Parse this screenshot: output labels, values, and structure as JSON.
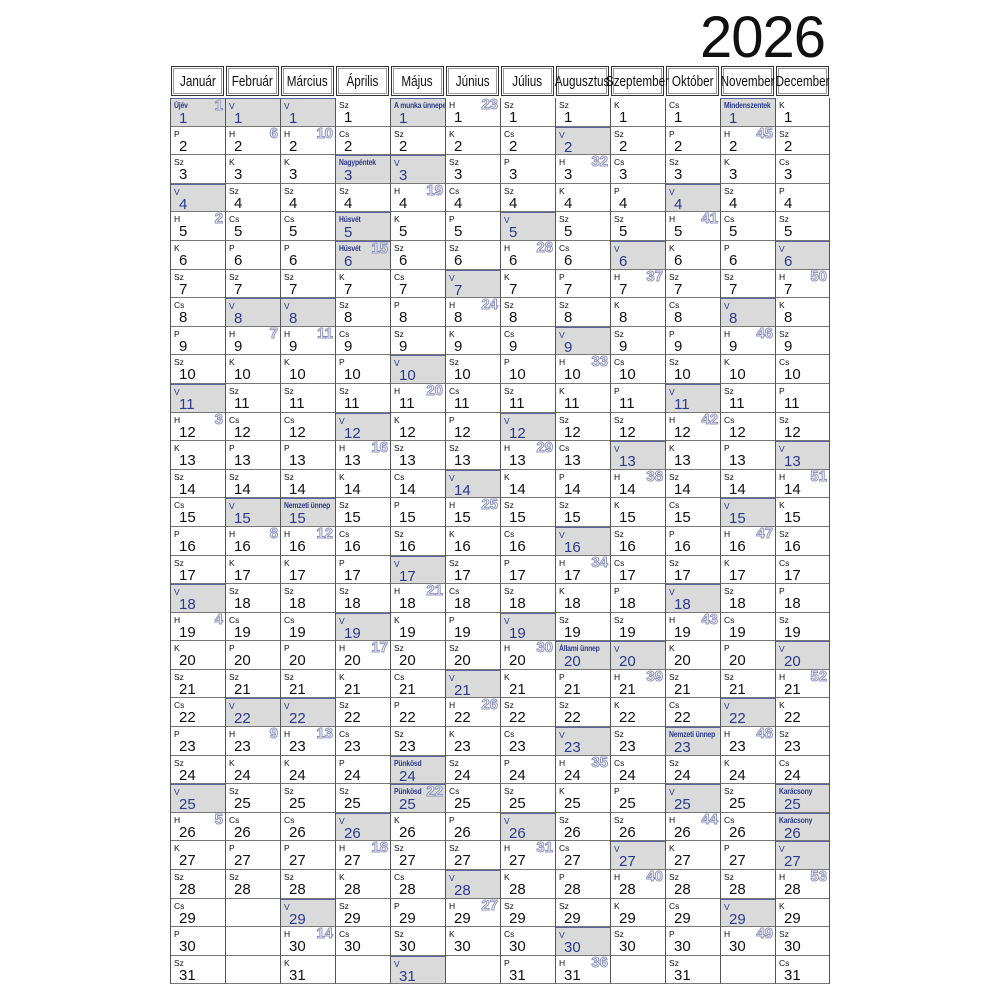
{
  "title": "2026",
  "colors": {
    "shaded_bg": "#dadada",
    "holiday_text": "#2b3a8c",
    "week_outline": "#8d93bd"
  },
  "day_numbers": [
    1,
    2,
    3,
    4,
    5,
    6,
    7,
    8,
    9,
    10,
    11,
    12,
    13,
    14,
    15,
    16,
    17,
    18,
    19,
    20,
    21,
    22,
    23,
    24,
    25,
    26,
    27,
    28,
    29,
    30,
    31
  ],
  "months": [
    {
      "name": "Január",
      "labels": [
        "Újév",
        "P",
        "Sz",
        "V",
        "H",
        "K",
        "Sz",
        "Cs",
        "P",
        "Sz",
        "V",
        "H",
        "K",
        "Sz",
        "Cs",
        "P",
        "Sz",
        "V",
        "H",
        "K",
        "Sz",
        "Cs",
        "P",
        "Sz",
        "V",
        "H",
        "K",
        "Sz",
        "Cs",
        "P",
        "Sz"
      ],
      "weeks": {
        "1": "1",
        "5": "2",
        "12": "3",
        "19": "4",
        "26": "5"
      },
      "shaded": [
        1,
        4,
        11,
        18,
        25
      ]
    },
    {
      "name": "Február",
      "labels": [
        "V",
        "H",
        "K",
        "Sz",
        "Cs",
        "P",
        "Sz",
        "V",
        "H",
        "K",
        "Sz",
        "Cs",
        "P",
        "Sz",
        "V",
        "H",
        "K",
        "Sz",
        "Cs",
        "P",
        "Sz",
        "V",
        "H",
        "K",
        "Sz",
        "Cs",
        "P",
        "Sz"
      ],
      "weeks": {
        "2": "6",
        "9": "7",
        "16": "8",
        "23": "9"
      },
      "shaded": [
        1,
        8,
        15,
        22
      ]
    },
    {
      "name": "Március",
      "labels": [
        "V",
        "H",
        "K",
        "Sz",
        "Cs",
        "P",
        "Sz",
        "V",
        "H",
        "K",
        "Sz",
        "Cs",
        "P",
        "Sz",
        "Nemzeti ünnep",
        "H",
        "K",
        "Sz",
        "Cs",
        "P",
        "Sz",
        "V",
        "H",
        "K",
        "Sz",
        "Cs",
        "P",
        "Sz",
        "V",
        "H",
        "K"
      ],
      "weeks": {
        "2": "10",
        "9": "11",
        "16": "12",
        "23": "13",
        "30": "14"
      },
      "shaded": [
        1,
        8,
        15,
        22,
        29
      ]
    },
    {
      "name": "Április",
      "labels": [
        "Sz",
        "Cs",
        "Nagypéntek",
        "Sz",
        "Húsvét",
        "Húsvét",
        "K",
        "Sz",
        "Cs",
        "P",
        "Sz",
        "V",
        "H",
        "K",
        "Sz",
        "Cs",
        "P",
        "Sz",
        "V",
        "H",
        "K",
        "Sz",
        "Cs",
        "P",
        "Sz",
        "V",
        "H",
        "K",
        "Sz",
        "Cs"
      ],
      "weeks": {
        "6": "15",
        "13": "16",
        "20": "17",
        "27": "18"
      },
      "shaded": [
        3,
        5,
        6,
        12,
        19,
        26
      ]
    },
    {
      "name": "Május",
      "labels": [
        "A munka ünnepe",
        "Sz",
        "V",
        "H",
        "K",
        "Sz",
        "Cs",
        "P",
        "Sz",
        "V",
        "H",
        "K",
        "Sz",
        "Cs",
        "P",
        "Sz",
        "V",
        "H",
        "K",
        "Sz",
        "Cs",
        "P",
        "Sz",
        "Pünkösd",
        "Pünkösd",
        "K",
        "Sz",
        "Cs",
        "P",
        "Sz",
        "V"
      ],
      "weeks": {
        "4": "19",
        "11": "20",
        "18": "21",
        "25": "22"
      },
      "shaded": [
        1,
        3,
        10,
        17,
        24,
        25,
        31
      ]
    },
    {
      "name": "Június",
      "labels": [
        "H",
        "K",
        "Sz",
        "Cs",
        "P",
        "Sz",
        "V",
        "H",
        "K",
        "Sz",
        "Cs",
        "P",
        "Sz",
        "V",
        "H",
        "K",
        "Sz",
        "Cs",
        "P",
        "Sz",
        "V",
        "H",
        "K",
        "Sz",
        "Cs",
        "P",
        "Sz",
        "V",
        "H",
        "K"
      ],
      "weeks": {
        "1": "23",
        "8": "24",
        "15": "25",
        "22": "26",
        "29": "27"
      },
      "shaded": [
        7,
        14,
        21,
        28
      ]
    },
    {
      "name": "Július",
      "labels": [
        "Sz",
        "Cs",
        "P",
        "Sz",
        "V",
        "H",
        "K",
        "Sz",
        "Cs",
        "P",
        "Sz",
        "V",
        "H",
        "K",
        "Sz",
        "Cs",
        "P",
        "Sz",
        "V",
        "H",
        "K",
        "Sz",
        "Cs",
        "P",
        "Sz",
        "V",
        "H",
        "K",
        "Sz",
        "Cs",
        "P"
      ],
      "weeks": {
        "6": "28",
        "13": "29",
        "20": "30",
        "27": "31"
      },
      "shaded": [
        5,
        12,
        19,
        26
      ]
    },
    {
      "name": "Augusztus",
      "labels": [
        "Sz",
        "V",
        "H",
        "K",
        "Sz",
        "Cs",
        "P",
        "Sz",
        "V",
        "H",
        "K",
        "Sz",
        "Cs",
        "P",
        "Sz",
        "V",
        "H",
        "K",
        "Sz",
        "Állami ünnep",
        "P",
        "Sz",
        "V",
        "H",
        "K",
        "Sz",
        "Cs",
        "P",
        "Sz",
        "V",
        "H"
      ],
      "weeks": {
        "3": "32",
        "10": "33",
        "17": "34",
        "24": "35",
        "31": "36"
      },
      "shaded": [
        2,
        9,
        16,
        20,
        23,
        30
      ]
    },
    {
      "name": "Szeptember",
      "labels": [
        "K",
        "Sz",
        "Cs",
        "P",
        "Sz",
        "V",
        "H",
        "K",
        "Sz",
        "Cs",
        "P",
        "Sz",
        "V",
        "H",
        "K",
        "Sz",
        "Cs",
        "P",
        "Sz",
        "V",
        "H",
        "K",
        "Sz",
        "Cs",
        "P",
        "Sz",
        "V",
        "H",
        "K",
        "Sz"
      ],
      "weeks": {
        "7": "37",
        "14": "38",
        "21": "39",
        "28": "40"
      },
      "shaded": [
        6,
        13,
        20,
        27
      ]
    },
    {
      "name": "Október",
      "labels": [
        "Cs",
        "P",
        "Sz",
        "V",
        "H",
        "K",
        "Sz",
        "Cs",
        "P",
        "Sz",
        "V",
        "H",
        "K",
        "Sz",
        "Cs",
        "P",
        "Sz",
        "V",
        "H",
        "K",
        "Sz",
        "Cs",
        "Nemzeti ünnep",
        "Sz",
        "V",
        "H",
        "K",
        "Sz",
        "Cs",
        "P",
        "Sz"
      ],
      "weeks": {
        "5": "41",
        "12": "42",
        "19": "43",
        "26": "44"
      },
      "shaded": [
        4,
        11,
        18,
        23,
        25
      ]
    },
    {
      "name": "November",
      "labels": [
        "Mindenszentek",
        "H",
        "K",
        "Sz",
        "Cs",
        "P",
        "Sz",
        "V",
        "H",
        "K",
        "Sz",
        "Cs",
        "P",
        "Sz",
        "V",
        "H",
        "K",
        "Sz",
        "Cs",
        "P",
        "Sz",
        "V",
        "H",
        "K",
        "Sz",
        "Cs",
        "P",
        "Sz",
        "V",
        "H"
      ],
      "weeks": {
        "2": "45",
        "9": "46",
        "16": "47",
        "23": "48",
        "30": "49"
      },
      "shaded": [
        1,
        8,
        15,
        22,
        29
      ]
    },
    {
      "name": "December",
      "labels": [
        "K",
        "Sz",
        "Cs",
        "P",
        "Sz",
        "V",
        "H",
        "K",
        "Sz",
        "Cs",
        "P",
        "Sz",
        "V",
        "H",
        "K",
        "Sz",
        "Cs",
        "P",
        "Sz",
        "V",
        "H",
        "K",
        "Sz",
        "Cs",
        "Karácsony",
        "Karácsony",
        "V",
        "H",
        "K",
        "Sz",
        "Cs"
      ],
      "weeks": {
        "7": "50",
        "14": "51",
        "21": "52",
        "28": "53"
      },
      "shaded": [
        6,
        13,
        20,
        25,
        26,
        27
      ]
    }
  ]
}
